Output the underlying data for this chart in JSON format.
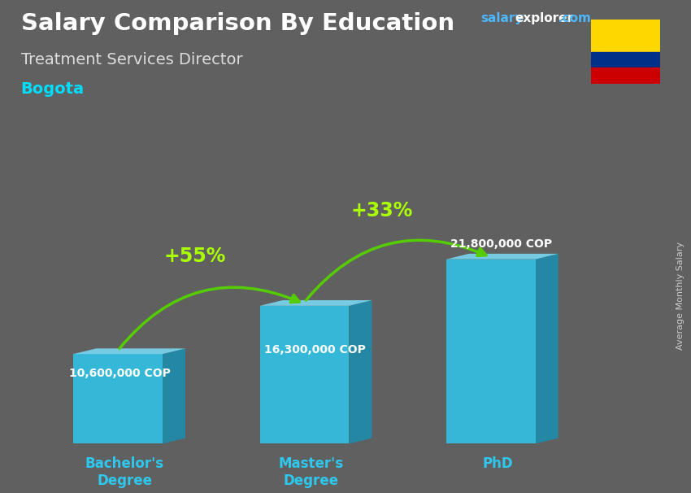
{
  "title": "Salary Comparison By Education",
  "subtitle": "Treatment Services Director",
  "city": "Bogota",
  "ylabel": "Average Monthly Salary",
  "categories": [
    "Bachelor's\nDegree",
    "Master's\nDegree",
    "PhD"
  ],
  "values": [
    10600000,
    16300000,
    21800000
  ],
  "value_labels": [
    "10,600,000 COP",
    "16,300,000 COP",
    "21,800,000 COP"
  ],
  "pct_labels": [
    "+55%",
    "+33%"
  ],
  "bar_color_face": "#2ec8ee",
  "bar_color_side": "#1a8fb0",
  "bar_color_top": "#7adffa",
  "bg_color": "#606060",
  "title_color": "#ffffff",
  "subtitle_color": "#dddddd",
  "city_color": "#00ddff",
  "brand_salary_color": "#4db8ff",
  "brand_explorer_color": "#ffffff",
  "brand_com_color": "#4db8ff",
  "value_label_color": "#ffffff",
  "pct_color": "#aaff00",
  "arrow_color": "#55cc00",
  "tick_label_color": "#2ec8ee",
  "figsize": [
    8.5,
    6.06
  ],
  "dpi": 100,
  "flag_colors": [
    "#FFD700",
    "#003087",
    "#CC0001"
  ],
  "flag_proportions": [
    0.5,
    0.25,
    0.25
  ]
}
